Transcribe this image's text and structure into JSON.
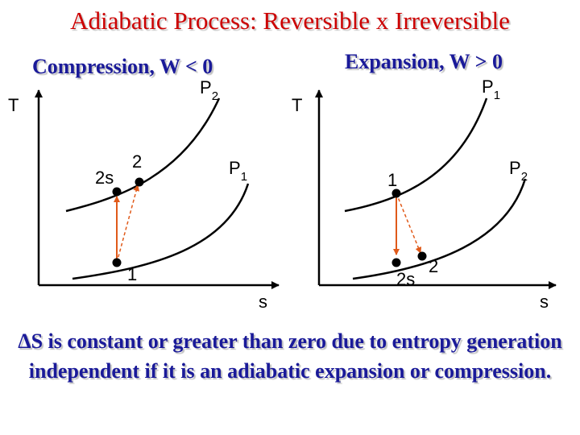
{
  "title": "Adiabatic Process: Reversible x Irreversible",
  "left": {
    "heading": "Compression, W < 0",
    "y_axis": "T",
    "x_axis": "s",
    "upper_isobar": "P",
    "upper_isobar_sub": "2",
    "lower_isobar": "P",
    "lower_isobar_sub": "1",
    "state_2s": "2s",
    "state_2": "2",
    "state_1": "1"
  },
  "right": {
    "heading": "Expansion, W > 0",
    "y_axis": "T",
    "x_axis": "s",
    "upper_isobar": "P",
    "upper_isobar_sub": "1",
    "lower_isobar": "P",
    "lower_isobar_sub": "2",
    "state_1": "1",
    "state_2s": "2s",
    "state_2": "2"
  },
  "footer": {
    "symbol": "Δ",
    "text": "S is constant or greater than zero due to entropy generation independent if it is an adiabatic expansion or compression."
  },
  "colors": {
    "title": "#cc0000",
    "heading": "#1a1a99",
    "process_line": "#e05a1a"
  }
}
